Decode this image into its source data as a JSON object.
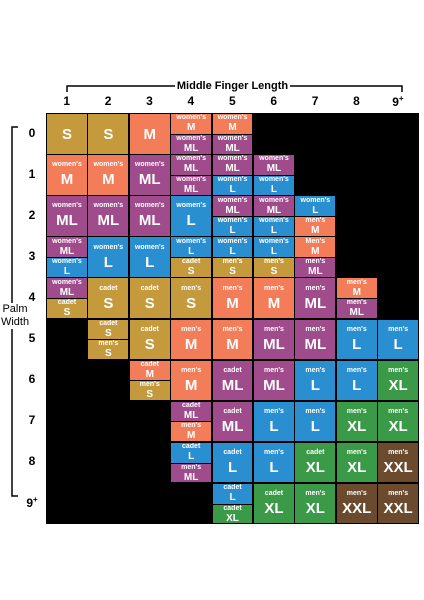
{
  "x_axis_title": "Middle Finger Length",
  "y_axis_title_line1": "Palm",
  "y_axis_title_line2": "Width",
  "columns": [
    "1",
    "2",
    "3",
    "4",
    "5",
    "6",
    "7",
    "8",
    "9+"
  ],
  "rows": [
    "0",
    "1",
    "2",
    "3",
    "4",
    "5",
    "6",
    "7",
    "8",
    "9+"
  ],
  "colors": {
    "gold": "#c49a3d",
    "orange": "#f47d59",
    "purple": "#a04c8c",
    "blue": "#2a8fd1",
    "green": "#3a9a47",
    "brown": "#6b4a2e",
    "empty": "#000000"
  },
  "grid": [
    [
      {
        "c": "gold",
        "l": "",
        "s": "S"
      },
      {
        "c": "gold",
        "l": "",
        "s": "S"
      },
      {
        "c": "orange",
        "l": "",
        "s": "M"
      },
      {
        "split": [
          {
            "c": "orange",
            "l": "women's",
            "s": "M"
          },
          {
            "c": "purple",
            "l": "women's",
            "s": "ML"
          }
        ]
      },
      {
        "split": [
          {
            "c": "orange",
            "l": "women's",
            "s": "M"
          },
          {
            "c": "purple",
            "l": "women's",
            "s": "ML"
          }
        ]
      },
      null,
      null,
      null,
      null
    ],
    [
      {
        "c": "orange",
        "l": "women's",
        "s": "M"
      },
      {
        "c": "orange",
        "l": "women's",
        "s": "M"
      },
      {
        "c": "purple",
        "l": "women's",
        "s": "ML"
      },
      {
        "split": [
          {
            "c": "purple",
            "l": "women's",
            "s": "ML"
          },
          {
            "c": "purple",
            "l": "women's",
            "s": "ML"
          }
        ]
      },
      {
        "split": [
          {
            "c": "purple",
            "l": "women's",
            "s": "ML"
          },
          {
            "c": "blue",
            "l": "women's",
            "s": "L"
          }
        ]
      },
      {
        "split": [
          {
            "c": "purple",
            "l": "women's",
            "s": "ML"
          },
          {
            "c": "blue",
            "l": "women's",
            "s": "L"
          }
        ]
      },
      null,
      null,
      null
    ],
    [
      {
        "c": "purple",
        "l": "women's",
        "s": "ML"
      },
      {
        "c": "purple",
        "l": "women's",
        "s": "ML"
      },
      {
        "c": "purple",
        "l": "women's",
        "s": "ML"
      },
      {
        "c": "blue",
        "l": "women's",
        "s": "L"
      },
      {
        "split": [
          {
            "c": "purple",
            "l": "women's",
            "s": "ML"
          },
          {
            "c": "blue",
            "l": "women's",
            "s": "L"
          }
        ]
      },
      {
        "split": [
          {
            "c": "purple",
            "l": "women's",
            "s": "ML"
          },
          {
            "c": "blue",
            "l": "women's",
            "s": "L"
          }
        ]
      },
      {
        "split": [
          {
            "c": "blue",
            "l": "women's",
            "s": "L"
          },
          {
            "c": "orange",
            "l": "men's",
            "s": "M"
          }
        ]
      },
      null,
      null
    ],
    [
      {
        "split": [
          {
            "c": "purple",
            "l": "women's",
            "s": "ML"
          },
          {
            "c": "blue",
            "l": "women's",
            "s": "L"
          }
        ]
      },
      {
        "c": "blue",
        "l": "women's",
        "s": "L"
      },
      {
        "c": "blue",
        "l": "women's",
        "s": "L"
      },
      {
        "split": [
          {
            "c": "blue",
            "l": "women's",
            "s": "L"
          },
          {
            "c": "gold",
            "l": "cadet",
            "s": "S"
          }
        ]
      },
      {
        "split": [
          {
            "c": "blue",
            "l": "women's",
            "s": "L"
          },
          {
            "c": "gold",
            "l": "men's",
            "s": "S"
          }
        ]
      },
      {
        "split": [
          {
            "c": "blue",
            "l": "women's",
            "s": "L"
          },
          {
            "c": "gold",
            "l": "men's",
            "s": "S"
          }
        ]
      },
      {
        "split": [
          {
            "c": "orange",
            "l": "Men's",
            "s": "M"
          },
          {
            "c": "purple",
            "l": "men's",
            "s": "ML"
          }
        ]
      },
      null,
      null
    ],
    [
      {
        "split": [
          {
            "c": "purple",
            "l": "women's",
            "s": "ML"
          },
          {
            "c": "gold",
            "l": "cadet",
            "s": "S"
          }
        ]
      },
      {
        "c": "gold",
        "l": "cadet",
        "s": "S"
      },
      {
        "c": "gold",
        "l": "cadet",
        "s": "S"
      },
      {
        "c": "gold",
        "l": "men's",
        "s": "S"
      },
      {
        "c": "orange",
        "l": "men's",
        "s": "M"
      },
      {
        "c": "orange",
        "l": "men's",
        "s": "M"
      },
      {
        "c": "purple",
        "l": "men's",
        "s": "ML"
      },
      {
        "split": [
          {
            "c": "orange",
            "l": "men's",
            "s": "M"
          },
          {
            "c": "purple",
            "l": "men's",
            "s": "ML"
          }
        ]
      },
      null
    ],
    [
      null,
      {
        "split": [
          {
            "c": "gold",
            "l": "cadet",
            "s": "S"
          },
          {
            "c": "gold",
            "l": "men's",
            "s": "S"
          }
        ]
      },
      {
        "c": "gold",
        "l": "cadet",
        "s": "S"
      },
      {
        "c": "orange",
        "l": "men's",
        "s": "M"
      },
      {
        "c": "orange",
        "l": "men's",
        "s": "M"
      },
      {
        "c": "purple",
        "l": "men's",
        "s": "ML"
      },
      {
        "c": "purple",
        "l": "men's",
        "s": "ML"
      },
      {
        "c": "blue",
        "l": "men's",
        "s": "L"
      },
      {
        "c": "blue",
        "l": "men's",
        "s": "L"
      }
    ],
    [
      null,
      null,
      {
        "split": [
          {
            "c": "orange",
            "l": "cadet",
            "s": "M"
          },
          {
            "c": "gold",
            "l": "men's",
            "s": "S"
          }
        ]
      },
      {
        "c": "orange",
        "l": "men's",
        "s": "M"
      },
      {
        "c": "purple",
        "l": "cadet",
        "s": "ML"
      },
      {
        "c": "purple",
        "l": "men's",
        "s": "ML"
      },
      {
        "c": "blue",
        "l": "men's",
        "s": "L"
      },
      {
        "c": "blue",
        "l": "men's",
        "s": "L"
      },
      {
        "c": "green",
        "l": "men's",
        "s": "XL"
      }
    ],
    [
      null,
      null,
      null,
      {
        "split": [
          {
            "c": "purple",
            "l": "cadet",
            "s": "ML"
          },
          {
            "c": "orange",
            "l": "men's",
            "s": "M"
          }
        ]
      },
      {
        "c": "purple",
        "l": "cadet",
        "s": "ML"
      },
      {
        "c": "blue",
        "l": "men's",
        "s": "L"
      },
      {
        "c": "blue",
        "l": "men's",
        "s": "L"
      },
      {
        "c": "green",
        "l": "men's",
        "s": "XL"
      },
      {
        "c": "green",
        "l": "men's",
        "s": "XL"
      }
    ],
    [
      null,
      null,
      null,
      {
        "split": [
          {
            "c": "blue",
            "l": "cadet",
            "s": "L"
          },
          {
            "c": "purple",
            "l": "men's",
            "s": "ML"
          }
        ]
      },
      {
        "c": "blue",
        "l": "cadet",
        "s": "L"
      },
      {
        "c": "blue",
        "l": "men's",
        "s": "L"
      },
      {
        "c": "green",
        "l": "cadet",
        "s": "XL"
      },
      {
        "c": "green",
        "l": "men's",
        "s": "XL"
      },
      {
        "c": "brown",
        "l": "men's",
        "s": "XXL"
      }
    ],
    [
      null,
      null,
      null,
      null,
      {
        "split": [
          {
            "c": "blue",
            "l": "cadet",
            "s": "L"
          },
          {
            "c": "green",
            "l": "cadet",
            "s": "XL"
          }
        ]
      },
      {
        "c": "green",
        "l": "cadet",
        "s": "XL"
      },
      {
        "c": "green",
        "l": "men's",
        "s": "XL"
      },
      {
        "c": "brown",
        "l": "men's",
        "s": "XXL"
      },
      {
        "c": "brown",
        "l": "men's",
        "s": "XXL"
      }
    ]
  ]
}
